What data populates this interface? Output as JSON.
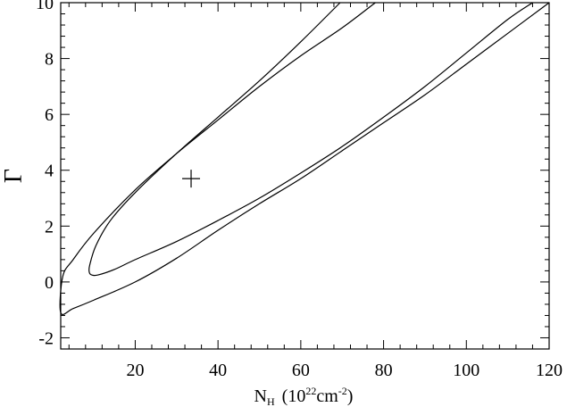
{
  "chart_data": {
    "type": "line",
    "title": "",
    "xlabel": {
      "base": "N",
      "sub": "H",
      "pre_unit": "(10",
      "unit_exp": "22",
      "unit": "cm",
      "unit_neg_exp": "-2",
      "close": ")"
    },
    "ylabel": "Γ",
    "xlim": [
      2,
      120
    ],
    "ylim": [
      -2.4,
      10
    ],
    "x_ticks": [
      20,
      40,
      60,
      80,
      100,
      120
    ],
    "x_tick_labels": [
      "20",
      "40",
      "60",
      "80",
      "100",
      "120"
    ],
    "y_ticks": [
      -2,
      0,
      2,
      4,
      6,
      8,
      10
    ],
    "y_tick_labels": [
      "-2",
      "0",
      "2",
      "4",
      "6",
      "8",
      "10"
    ],
    "grid": false,
    "best_fit": {
      "x": 33.5,
      "y": 3.7,
      "marker": "+"
    },
    "series": [
      {
        "kind": "contour",
        "x": [
          69.5,
          60.0,
          50.0,
          40.0,
          30.0,
          20.0,
          14.0,
          10.5,
          9.0,
          8.9,
          9.5,
          11.0,
          15.0,
          20.0,
          30.0,
          40.0,
          50.0,
          60.0,
          70.0,
          80.0,
          90.0,
          100.0,
          110.0,
          116.0
        ],
        "y": [
          10.0,
          8.6,
          7.2,
          5.9,
          4.6,
          3.2,
          2.2,
          1.3,
          0.6,
          0.35,
          0.25,
          0.25,
          0.45,
          0.8,
          1.45,
          2.2,
          3.0,
          3.9,
          4.85,
          5.9,
          7.0,
          8.2,
          9.4,
          10.0
        ]
      },
      {
        "kind": "contour",
        "x": [
          78.0,
          70.0,
          60.0,
          50.0,
          40.0,
          30.0,
          20.0,
          10.0,
          5.0,
          2.5,
          2.0,
          5.0,
          10.0,
          20.0,
          30.0,
          40.0,
          50.0,
          60.0,
          70.0,
          80.0,
          90.0,
          100.0,
          110.0,
          120.0
        ],
        "y": [
          10.0,
          9.1,
          8.1,
          7.0,
          5.8,
          4.6,
          3.3,
          1.75,
          0.8,
          0.2,
          -1.1,
          -0.95,
          -0.65,
          0.0,
          0.85,
          1.85,
          2.8,
          3.7,
          4.7,
          5.7,
          6.7,
          7.8,
          8.9,
          10.0
        ]
      }
    ]
  }
}
